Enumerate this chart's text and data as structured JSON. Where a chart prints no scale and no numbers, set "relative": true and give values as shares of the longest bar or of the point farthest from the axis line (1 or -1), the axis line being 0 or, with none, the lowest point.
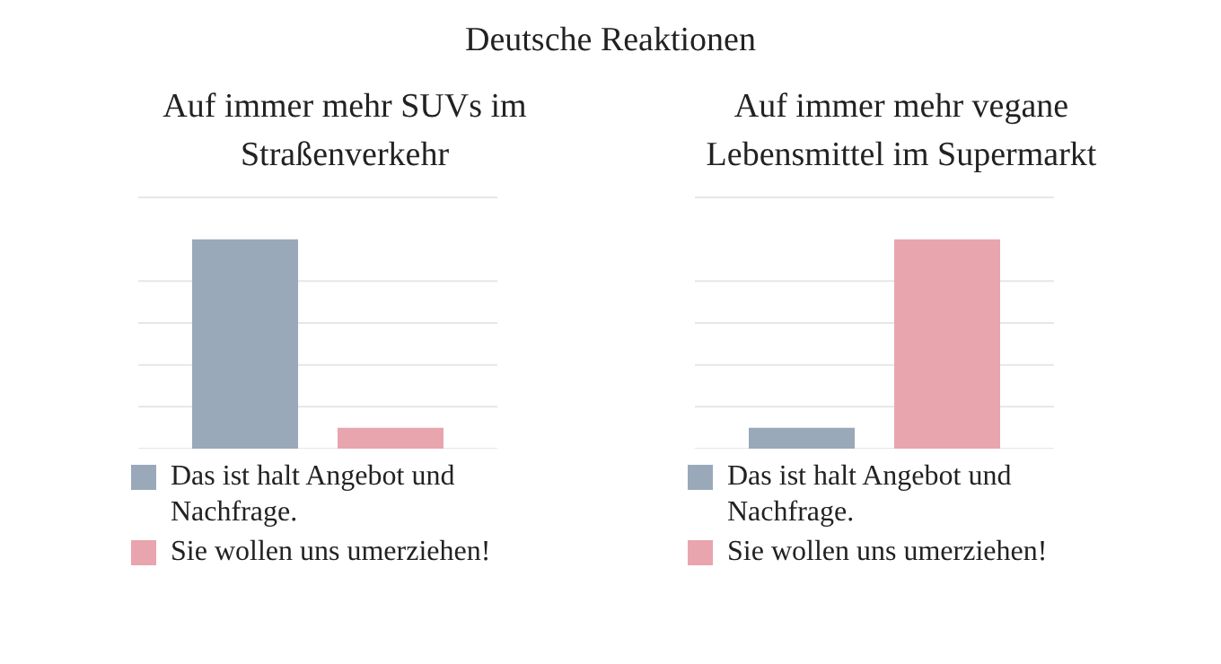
{
  "chart_data": [
    {
      "type": "bar",
      "title": "Deutsche Reaktionen",
      "subtitle": "Auf immer mehr SUVs im Straßenverkehr",
      "relative": true,
      "categories": [
        null
      ],
      "grid": "y",
      "legend": "bottom",
      "series": [
        {
          "name": "Das ist halt Angebot und Nachfrage.",
          "color": "#9aa9b9",
          "values": [
            1
          ]
        },
        {
          "name": "Sie wollen uns umerziehen!",
          "color": "#e8a5ad",
          "values": [
            0.1
          ]
        }
      ]
    },
    {
      "type": "bar",
      "subtitle": "Auf immer mehr vegane Lebensmittel im Supermarkt",
      "relative": true,
      "categories": [
        null
      ],
      "grid": "y",
      "legend": "bottom",
      "series": [
        {
          "name": "Das ist halt Angebot und Nachfrage.",
          "color": "#9aa9b9",
          "values": [
            0.1
          ]
        },
        {
          "name": "Sie wollen uns umerziehen!",
          "color": "#e8a5ad",
          "values": [
            1
          ]
        }
      ]
    }
  ]
}
